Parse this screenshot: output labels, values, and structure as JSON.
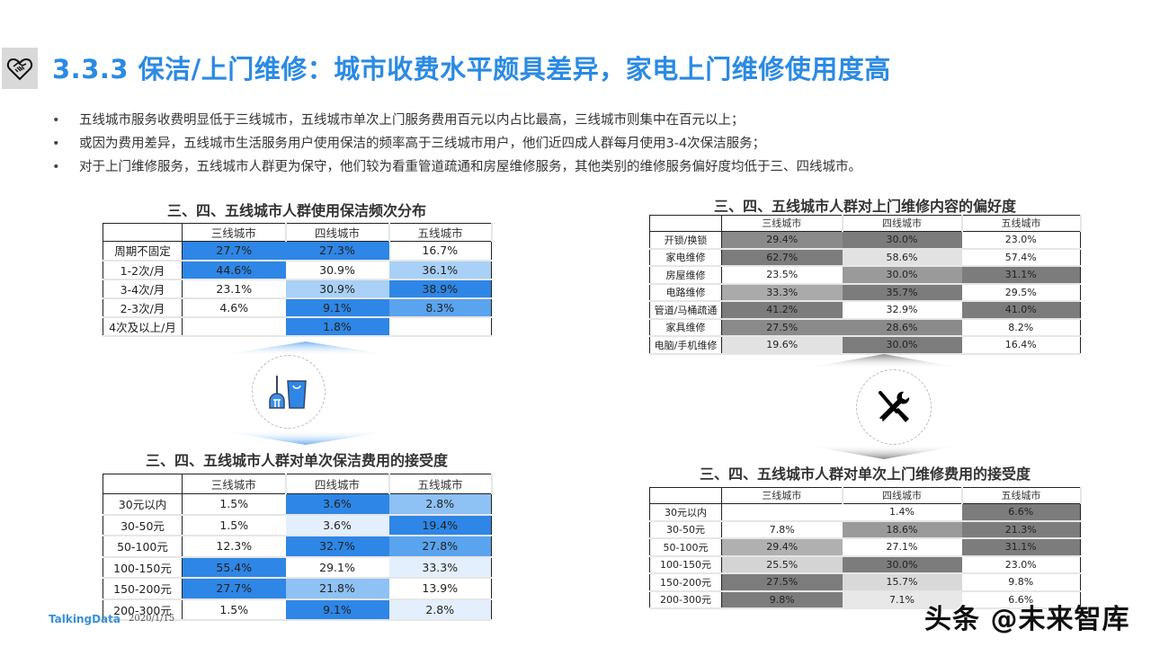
{
  "header": {
    "title": "3.3.3 保洁/上门维修：城市收费水平颇具差异，家电上门维修使用度高",
    "title_color": "#2b8ae3",
    "logo_icon": "heart-handshake-icon"
  },
  "bullets": [
    "五线城市服务收费明显低于三线城市，五线城市单次上门服务费用百元以内占比最高，三线城市则集中在百元以上；",
    "或因为费用差异，五线城市生活服务用户使用保洁的频率高于三线城市用户，他们近四成人群每月使用3-4次保洁服务；",
    "对于上门维修服务，五线城市人群更为保守，他们较为看重管道疏通和房屋维修服务，其他类别的维修服务偏好度均低于三、四线城市。"
  ],
  "bullet_symbol": "•",
  "columns": [
    "三线城市",
    "四线城市",
    "五线城市"
  ],
  "tables": {
    "cleaning_freq": {
      "title": "三、四、五线城市人群使用保洁频次分布",
      "rows": [
        {
          "label": "周期不固定",
          "values": [
            "27.7%",
            "27.3%",
            "16.7%"
          ],
          "colors": [
            "#2e86e6",
            "#2e86e6",
            "#ffffff"
          ]
        },
        {
          "label": "1-2次/月",
          "values": [
            "44.6%",
            "30.9%",
            "36.1%"
          ],
          "colors": [
            "#2e86e6",
            "#ffffff",
            "#a9d0f7"
          ]
        },
        {
          "label": "3-4次/月",
          "values": [
            "23.1%",
            "30.9%",
            "38.9%"
          ],
          "colors": [
            "#ffffff",
            "#a9d0f7",
            "#2e86e6"
          ]
        },
        {
          "label": "2-3次/月",
          "values": [
            "4.6%",
            "9.1%",
            "8.3%"
          ],
          "colors": [
            "#ffffff",
            "#2e86e6",
            "#5aa3ee"
          ]
        },
        {
          "label": "4次及以上/月",
          "values": [
            "",
            "1.8%",
            ""
          ],
          "colors": [
            "#ffffff",
            "#2e86e6",
            "#ffffff"
          ]
        }
      ]
    },
    "cleaning_fee": {
      "title": "三、四、五线城市人群对单次保洁费用的接受度",
      "rows": [
        {
          "label": "30元以内",
          "values": [
            "1.5%",
            "3.6%",
            "2.8%"
          ],
          "colors": [
            "#ffffff",
            "#2e86e6",
            "#8ec1f4"
          ]
        },
        {
          "label": "30-50元",
          "values": [
            "1.5%",
            "3.6%",
            "19.4%"
          ],
          "colors": [
            "#ffffff",
            "#e3effc",
            "#2e86e6"
          ]
        },
        {
          "label": "50-100元",
          "values": [
            "12.3%",
            "32.7%",
            "27.8%"
          ],
          "colors": [
            "#ffffff",
            "#2e86e6",
            "#5aa3ee"
          ]
        },
        {
          "label": "100-150元",
          "values": [
            "55.4%",
            "29.1%",
            "33.3%"
          ],
          "colors": [
            "#2e86e6",
            "#ffffff",
            "#e3effc"
          ]
        },
        {
          "label": "150-200元",
          "values": [
            "27.7%",
            "21.8%",
            "13.9%"
          ],
          "colors": [
            "#2e86e6",
            "#8ec1f4",
            "#ffffff"
          ]
        },
        {
          "label": "200-300元",
          "values": [
            "1.5%",
            "9.1%",
            "2.8%"
          ],
          "colors": [
            "#ffffff",
            "#2e86e6",
            "#e3effc"
          ]
        }
      ]
    },
    "repair_pref": {
      "title": "三、四、五线城市人群对上门维修内容的偏好度",
      "rows": [
        {
          "label": "开锁/换锁",
          "values": [
            "29.4%",
            "30.0%",
            "23.0%"
          ],
          "colors": [
            "#8a8a8a",
            "#7c7c7c",
            "#ffffff"
          ]
        },
        {
          "label": "家电维修",
          "values": [
            "62.7%",
            "58.6%",
            "57.4%"
          ],
          "colors": [
            "#7c7c7c",
            "#e2e2e2",
            "#ffffff"
          ]
        },
        {
          "label": "房屋维修",
          "values": [
            "23.5%",
            "30.0%",
            "31.1%"
          ],
          "colors": [
            "#ffffff",
            "#9a9a9a",
            "#7c7c7c"
          ]
        },
        {
          "label": "电路维修",
          "values": [
            "33.3%",
            "35.7%",
            "29.5%"
          ],
          "colors": [
            "#aaaaaa",
            "#7c7c7c",
            "#ffffff"
          ]
        },
        {
          "label": "管道/马桶疏通",
          "values": [
            "41.2%",
            "32.9%",
            "41.0%"
          ],
          "colors": [
            "#7c7c7c",
            "#ffffff",
            "#7c7c7c"
          ]
        },
        {
          "label": "家具维修",
          "values": [
            "27.5%",
            "28.6%",
            "8.2%"
          ],
          "colors": [
            "#8a8a8a",
            "#8a8a8a",
            "#ffffff"
          ]
        },
        {
          "label": "电脑/手机维修",
          "values": [
            "19.6%",
            "30.0%",
            "16.4%"
          ],
          "colors": [
            "#e2e2e2",
            "#7c7c7c",
            "#ffffff"
          ]
        }
      ]
    },
    "repair_fee": {
      "title": "三、四、五线城市人群对单次上门维修费用的接受度",
      "rows": [
        {
          "label": "30元以内",
          "values": [
            "",
            "1.4%",
            "6.6%"
          ],
          "colors": [
            "#ffffff",
            "#ffffff",
            "#7c7c7c"
          ]
        },
        {
          "label": "30-50元",
          "values": [
            "7.8%",
            "18.6%",
            "21.3%"
          ],
          "colors": [
            "#ffffff",
            "#9a9a9a",
            "#7c7c7c"
          ]
        },
        {
          "label": "50-100元",
          "values": [
            "29.4%",
            "27.1%",
            "31.1%"
          ],
          "colors": [
            "#b0b0b0",
            "#ffffff",
            "#7c7c7c"
          ]
        },
        {
          "label": "100-150元",
          "values": [
            "25.5%",
            "30.0%",
            "23.0%"
          ],
          "colors": [
            "#d4d4d4",
            "#7c7c7c",
            "#ffffff"
          ]
        },
        {
          "label": "150-200元",
          "values": [
            "27.5%",
            "15.7%",
            "9.8%"
          ],
          "colors": [
            "#7c7c7c",
            "#d9d9d9",
            "#ffffff"
          ]
        },
        {
          "label": "200-300元",
          "values": [
            "9.8%",
            "7.1%",
            "6.6%"
          ],
          "colors": [
            "#7c7c7c",
            "#e8e8e8",
            "#ffffff"
          ]
        }
      ]
    }
  },
  "icons": {
    "cleaning": "broom-bucket-icon",
    "repair": "wrench-screwdriver-icon"
  },
  "footer": {
    "brand": "TalkingData",
    "date": "2020/1/15",
    "watermark": "头条 @未来智库"
  }
}
